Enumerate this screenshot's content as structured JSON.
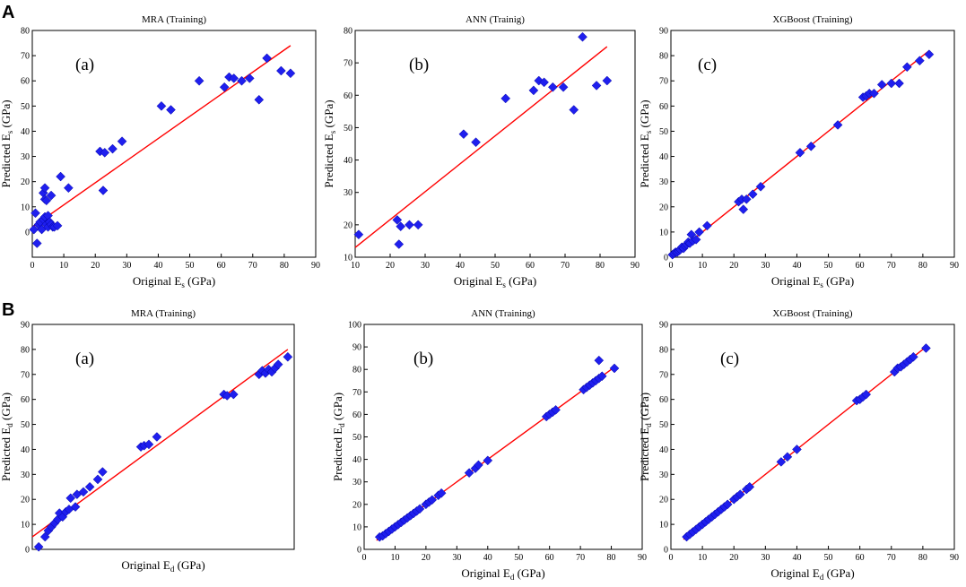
{
  "figure": {
    "row_labels": [
      "A",
      "B"
    ],
    "marker_color": "#1f1fee",
    "fit_line_color": "#ff0000"
  },
  "chart_data": [
    {
      "type": "scatter",
      "title": "MRA (Training)",
      "label": "(a)",
      "xlabel": "Original E",
      "xlabel_sub": "s",
      "xlabel_unit": " (GPa)",
      "ylabel": "Predicted E",
      "ylabel_sub": "s",
      "ylabel_unit": " (GPa)",
      "xlim": [
        0,
        90
      ],
      "ylim": [
        -10,
        80
      ],
      "xticks": [
        0,
        10,
        20,
        30,
        40,
        50,
        60,
        70,
        80,
        90
      ],
      "yticks": [
        0,
        10,
        20,
        30,
        40,
        50,
        60,
        70,
        80
      ],
      "fit_line": [
        [
          0,
          2
        ],
        [
          82,
          74
        ]
      ],
      "points": [
        [
          0.5,
          1
        ],
        [
          1,
          7.5
        ],
        [
          1.5,
          -4.5
        ],
        [
          2,
          3
        ],
        [
          2.5,
          4
        ],
        [
          3,
          1
        ],
        [
          3.5,
          5
        ],
        [
          3.5,
          15.5
        ],
        [
          4,
          17.5
        ],
        [
          4,
          13
        ],
        [
          4.5,
          12.5
        ],
        [
          4,
          6
        ],
        [
          4.5,
          3
        ],
        [
          5,
          2
        ],
        [
          5,
          6.5
        ],
        [
          5.5,
          4
        ],
        [
          6,
          14.5
        ],
        [
          6,
          3
        ],
        [
          6.5,
          2
        ],
        [
          7,
          2
        ],
        [
          8,
          2.5
        ],
        [
          9,
          22
        ],
        [
          11.5,
          17.5
        ],
        [
          21.5,
          32
        ],
        [
          22.5,
          16.5
        ],
        [
          23,
          31.5
        ],
        [
          25.5,
          33
        ],
        [
          28.5,
          36
        ],
        [
          41,
          50
        ],
        [
          44,
          48.5
        ],
        [
          53,
          60
        ],
        [
          61,
          57.5
        ],
        [
          62.5,
          61.5
        ],
        [
          64,
          61
        ],
        [
          66.5,
          60
        ],
        [
          69,
          61
        ],
        [
          72,
          52.5
        ],
        [
          74.5,
          69
        ],
        [
          79,
          64
        ],
        [
          82,
          63
        ]
      ]
    },
    {
      "type": "scatter",
      "title": "ANN (Trainig)",
      "label": "(b)",
      "xlabel": "Original E",
      "xlabel_sub": "s",
      "xlabel_unit": " (GPa)",
      "ylabel": "Predicted E",
      "ylabel_sub": "s",
      "ylabel_unit": " (GPa)",
      "xlim": [
        10,
        90
      ],
      "ylim": [
        10,
        80
      ],
      "xticks": [
        10,
        20,
        30,
        40,
        50,
        60,
        70,
        80,
        90
      ],
      "yticks": [
        10,
        20,
        30,
        40,
        50,
        60,
        70,
        80
      ],
      "fit_line": [
        [
          10,
          13
        ],
        [
          82,
          75
        ]
      ],
      "points": [
        [
          11,
          17
        ],
        [
          22,
          21.5
        ],
        [
          22.5,
          14
        ],
        [
          23,
          19.5
        ],
        [
          25.5,
          20
        ],
        [
          28,
          20
        ],
        [
          41,
          48
        ],
        [
          44.5,
          45.5
        ],
        [
          53,
          59
        ],
        [
          61,
          61.5
        ],
        [
          62.5,
          64.5
        ],
        [
          64,
          64
        ],
        [
          66.5,
          62.5
        ],
        [
          69.5,
          62.5
        ],
        [
          72.5,
          55.5
        ],
        [
          75,
          78
        ],
        [
          79,
          63
        ],
        [
          82,
          64.5
        ]
      ]
    },
    {
      "type": "scatter",
      "title": "XGBoost (Training)",
      "label": "(c)",
      "xlabel": "Original E",
      "xlabel_sub": "s",
      "xlabel_unit": " (GPa)",
      "ylabel": "Predicted E",
      "ylabel_sub": "s",
      "ylabel_unit": " (GPa)",
      "xlim": [
        0,
        90
      ],
      "ylim": [
        0,
        90
      ],
      "xticks": [
        0,
        10,
        20,
        30,
        40,
        50,
        60,
        70,
        80,
        90
      ],
      "yticks": [
        0,
        10,
        20,
        30,
        40,
        50,
        60,
        70,
        80,
        90
      ],
      "fit_line": [
        [
          0,
          0
        ],
        [
          82,
          82
        ]
      ],
      "points": [
        [
          0.5,
          1
        ],
        [
          1,
          1.5
        ],
        [
          1.5,
          2
        ],
        [
          2,
          2
        ],
        [
          2.5,
          2.5
        ],
        [
          3,
          3
        ],
        [
          3.5,
          4
        ],
        [
          4,
          3.5
        ],
        [
          4.5,
          4.5
        ],
        [
          5,
          5
        ],
        [
          5.5,
          6
        ],
        [
          6,
          5.5
        ],
        [
          6.5,
          9
        ],
        [
          7,
          6.5
        ],
        [
          8,
          7
        ],
        [
          9,
          10
        ],
        [
          11.5,
          12.5
        ],
        [
          21.5,
          22
        ],
        [
          22.5,
          23
        ],
        [
          23,
          19
        ],
        [
          24,
          23
        ],
        [
          26,
          25
        ],
        [
          28.5,
          28
        ],
        [
          41,
          41.5
        ],
        [
          44.5,
          44
        ],
        [
          53,
          52.5
        ],
        [
          61,
          63.5
        ],
        [
          62,
          64
        ],
        [
          63,
          65
        ],
        [
          64.5,
          65
        ],
        [
          67,
          68.5
        ],
        [
          70,
          69
        ],
        [
          72.5,
          69
        ],
        [
          75,
          75.5
        ],
        [
          79,
          78
        ],
        [
          82,
          80.5
        ]
      ]
    },
    {
      "type": "scatter",
      "title": "MRA (Training)",
      "label": "(a)",
      "xlabel": "Original E",
      "xlabel_sub": "d",
      "xlabel_unit": " (GPa)",
      "ylabel": "Predicted E",
      "ylabel_sub": "d",
      "ylabel_unit": " (GPa)",
      "xlim": [
        0,
        82
      ],
      "ylim": [
        0,
        90
      ],
      "xticks": [],
      "yticks": [
        0,
        10,
        20,
        30,
        40,
        50,
        60,
        70,
        80,
        90
      ],
      "fit_line": [
        [
          0,
          5
        ],
        [
          80,
          80
        ]
      ],
      "points": [
        [
          2,
          1
        ],
        [
          4,
          5
        ],
        [
          5,
          7.5
        ],
        [
          6,
          9
        ],
        [
          7,
          10.5
        ],
        [
          8,
          12
        ],
        [
          8.5,
          14.5
        ],
        [
          9.5,
          13
        ],
        [
          10.5,
          15
        ],
        [
          11.5,
          16
        ],
        [
          12,
          20.5
        ],
        [
          13.5,
          17
        ],
        [
          14,
          22
        ],
        [
          16,
          23
        ],
        [
          18,
          25
        ],
        [
          20.5,
          28
        ],
        [
          22,
          31
        ],
        [
          34,
          41
        ],
        [
          35,
          41.5
        ],
        [
          36.5,
          42
        ],
        [
          39,
          45
        ],
        [
          60,
          62
        ],
        [
          61,
          61.5
        ],
        [
          63,
          62
        ],
        [
          71,
          70
        ],
        [
          72,
          71.5
        ],
        [
          73,
          70.5
        ],
        [
          74,
          72
        ],
        [
          75,
          71
        ],
        [
          76,
          72.5
        ],
        [
          77,
          74
        ],
        [
          80,
          77
        ]
      ]
    },
    {
      "type": "scatter",
      "title": "ANN (Training)",
      "label": "(b)",
      "xlabel": "Original E",
      "xlabel_sub": "d",
      "xlabel_unit": " (GPa)",
      "ylabel": "Predicted E",
      "ylabel_sub": "d",
      "ylabel_unit": " (GPa)",
      "xlim": [
        0,
        90
      ],
      "ylim": [
        0,
        100
      ],
      "xticks": [
        0,
        10,
        20,
        30,
        40,
        50,
        60,
        70,
        80,
        90
      ],
      "yticks": [
        0,
        10,
        20,
        30,
        40,
        50,
        60,
        70,
        80,
        90,
        100
      ],
      "fit_line": [
        [
          4,
          4
        ],
        [
          81,
          81
        ]
      ],
      "points": [
        [
          5,
          5.5
        ],
        [
          6,
          6
        ],
        [
          7,
          7
        ],
        [
          8,
          8
        ],
        [
          9,
          9
        ],
        [
          10,
          10
        ],
        [
          11,
          11
        ],
        [
          12,
          12
        ],
        [
          13,
          13
        ],
        [
          14,
          14
        ],
        [
          15,
          15
        ],
        [
          16,
          16
        ],
        [
          17,
          17
        ],
        [
          18,
          18
        ],
        [
          20,
          20
        ],
        [
          21,
          21
        ],
        [
          22,
          22
        ],
        [
          24,
          24
        ],
        [
          25,
          25
        ],
        [
          34,
          34
        ],
        [
          36,
          36
        ],
        [
          37,
          37.5
        ],
        [
          40,
          39.5
        ],
        [
          59,
          59
        ],
        [
          60,
          60
        ],
        [
          61,
          61
        ],
        [
          62,
          62
        ],
        [
          71,
          71
        ],
        [
          72,
          72
        ],
        [
          73,
          73
        ],
        [
          74,
          74
        ],
        [
          75,
          75
        ],
        [
          76,
          76
        ],
        [
          77,
          77
        ],
        [
          76,
          84
        ],
        [
          81,
          80.5
        ]
      ]
    },
    {
      "type": "scatter",
      "title": "XGBoost (Training)",
      "label": "(c)",
      "xlabel": "Original E",
      "xlabel_sub": "d",
      "xlabel_unit": " (GPa)",
      "ylabel": "Predicted E",
      "ylabel_sub": "d",
      "ylabel_unit": " (GPa)",
      "xlim": [
        0,
        90
      ],
      "ylim": [
        0,
        90
      ],
      "xticks": [
        0,
        10,
        20,
        30,
        40,
        50,
        60,
        70,
        80,
        90
      ],
      "yticks": [
        0,
        10,
        20,
        30,
        40,
        50,
        60,
        70,
        80,
        90
      ],
      "fit_line": [
        [
          4,
          4
        ],
        [
          81,
          81
        ]
      ],
      "points": [
        [
          5,
          5
        ],
        [
          6,
          6
        ],
        [
          7,
          7
        ],
        [
          8,
          8
        ],
        [
          9,
          9
        ],
        [
          10,
          10
        ],
        [
          11,
          11
        ],
        [
          12,
          12
        ],
        [
          13,
          13
        ],
        [
          14,
          14
        ],
        [
          15,
          15
        ],
        [
          16,
          16
        ],
        [
          17,
          17
        ],
        [
          18,
          18
        ],
        [
          20,
          20
        ],
        [
          21,
          21
        ],
        [
          22,
          22
        ],
        [
          24,
          24
        ],
        [
          25,
          25
        ],
        [
          35,
          35
        ],
        [
          37,
          37
        ],
        [
          40,
          40
        ],
        [
          59,
          59.5
        ],
        [
          60,
          60
        ],
        [
          61,
          61
        ],
        [
          62,
          62
        ],
        [
          71,
          71
        ],
        [
          72,
          72.5
        ],
        [
          73,
          73
        ],
        [
          74,
          74
        ],
        [
          75,
          75
        ],
        [
          76,
          76
        ],
        [
          77,
          77
        ],
        [
          81,
          80.5
        ]
      ]
    }
  ]
}
